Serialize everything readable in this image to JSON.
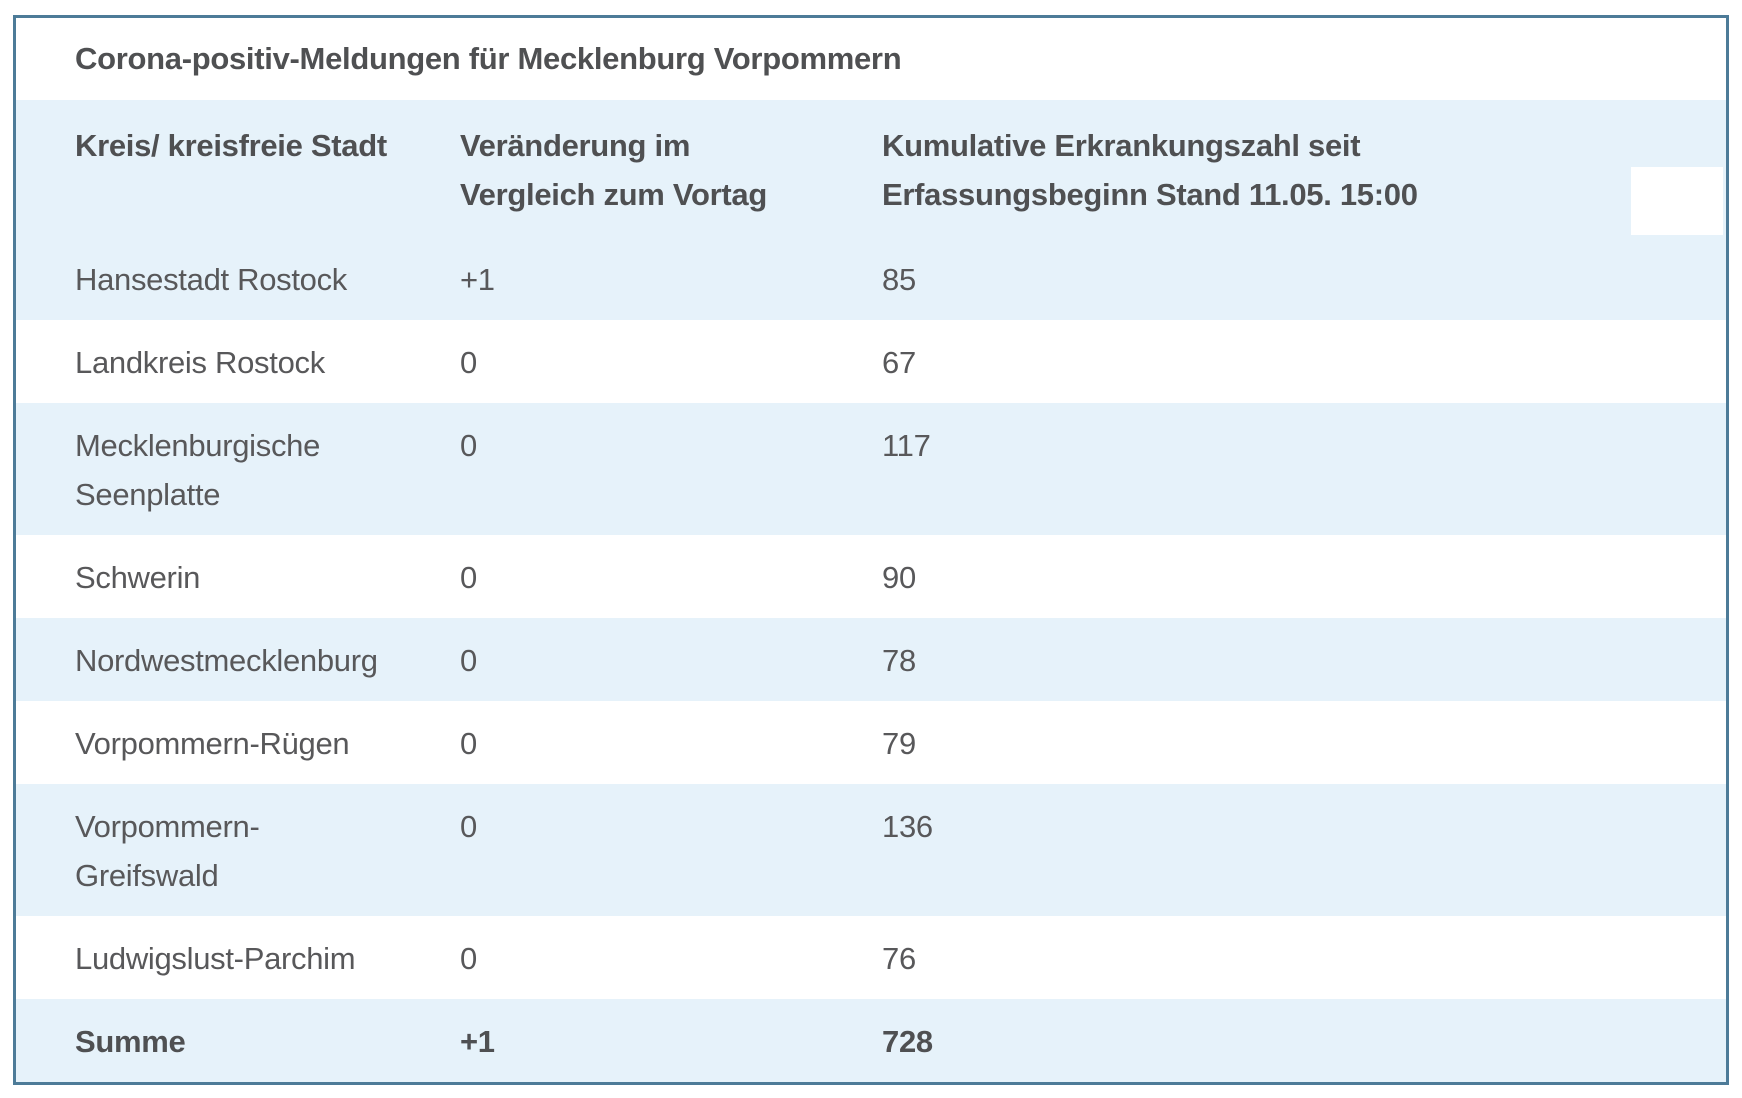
{
  "title": "Corona-positiv-Meldungen für Mecklenburg Vorpommern",
  "header": {
    "col1": "Kreis/ kreisfreie Stadt",
    "col2": "Veränderung im\nVergleich zum Vortag",
    "col3": "Kumulative Erkrankungszahl seit\nErfassungsbeginn Stand 11.05. 15:00"
  },
  "rows": [
    {
      "kreis": "Hansestadt Rostock",
      "change": "+1",
      "cumulative": "85"
    },
    {
      "kreis": "Landkreis Rostock",
      "change": "0",
      "cumulative": "67"
    },
    {
      "kreis": "Mecklenburgische\nSeenplatte",
      "change": "0",
      "cumulative": "117"
    },
    {
      "kreis": "Schwerin",
      "change": "0",
      "cumulative": "90"
    },
    {
      "kreis": "Nordwestmecklenburg",
      "change": "0",
      "cumulative": "78"
    },
    {
      "kreis": "Vorpommern-Rügen",
      "change": "0",
      "cumulative": "79"
    },
    {
      "kreis": "Vorpommern-\nGreifswald",
      "change": "0",
      "cumulative": "136"
    },
    {
      "kreis": "Ludwigslust-Parchim",
      "change": "0",
      "cumulative": "76"
    },
    {
      "kreis": "Summe",
      "change": "+1",
      "cumulative": "728"
    }
  ],
  "colors": {
    "stripe_blue": "#e6f2fa",
    "border_blue": "#4d7b98",
    "text_gray": "#58585a",
    "heading_gray": "#4f5052",
    "background": "#ffffff"
  },
  "chart_data": {
    "type": "table",
    "title": "Corona-positiv-Meldungen für Mecklenburg Vorpommern",
    "columns": [
      "Kreis/ kreisfreie Stadt",
      "Veränderung im Vergleich zum Vortag",
      "Kumulative Erkrankungszahl seit Erfassungsbeginn Stand 11.05. 15:00"
    ],
    "categories": [
      "Hansestadt Rostock",
      "Landkreis Rostock",
      "Mecklenburgische Seenplatte",
      "Schwerin",
      "Nordwestmecklenburg",
      "Vorpommern-Rügen",
      "Vorpommern-Greifswald",
      "Ludwigslust-Parchim"
    ],
    "series": [
      {
        "name": "Veränderung im Vergleich zum Vortag",
        "values": [
          1,
          0,
          0,
          0,
          0,
          0,
          0,
          0
        ]
      },
      {
        "name": "Kumulative Erkrankungszahl",
        "values": [
          85,
          67,
          117,
          90,
          78,
          79,
          136,
          76
        ]
      }
    ],
    "total_row": {
      "label": "Summe",
      "change": "+1",
      "cumulative": 728
    },
    "layout": {
      "striped": true,
      "stripe_color": "#e6f2fa",
      "header_position": "top"
    }
  }
}
